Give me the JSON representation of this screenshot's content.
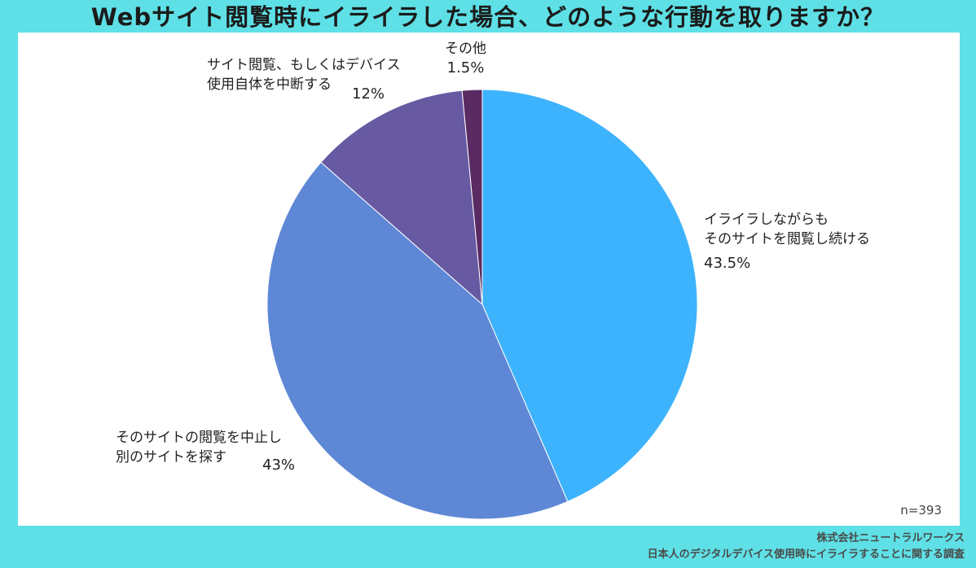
{
  "title": "Webサイト閲覧時にイライラした場合、どのような行動を取りますか？",
  "chart_data": {
    "type": "pie",
    "title": "Webサイト閲覧時にイライラした場合、どのような行動を取りますか？",
    "slices": [
      {
        "label_lines": [
          "イライラしながらも",
          "そのサイトを閲覧し続ける"
        ],
        "value": 43.5,
        "value_label": "43.5%",
        "color": "#3db3fd"
      },
      {
        "label_lines": [
          "そのサイトの閲覧を中止し",
          "別のサイトを探す"
        ],
        "value": 43,
        "value_label": "43%",
        "color": "#5e87d6"
      },
      {
        "label_lines": [
          "サイト閲覧、もしくはデバイス",
          "使用自体を中断する"
        ],
        "value": 12,
        "value_label": "12%",
        "color": "#675aa2"
      },
      {
        "label_lines": [
          "その他"
        ],
        "value": 1.5,
        "value_label": "1.5%",
        "color": "#5a2a63"
      }
    ]
  },
  "sample_size": "n=393",
  "footer": {
    "company": "株式会社ニュートラルワークス",
    "survey": "日本人のデジタルデバイス使用時にイライラすることに関する調査"
  }
}
